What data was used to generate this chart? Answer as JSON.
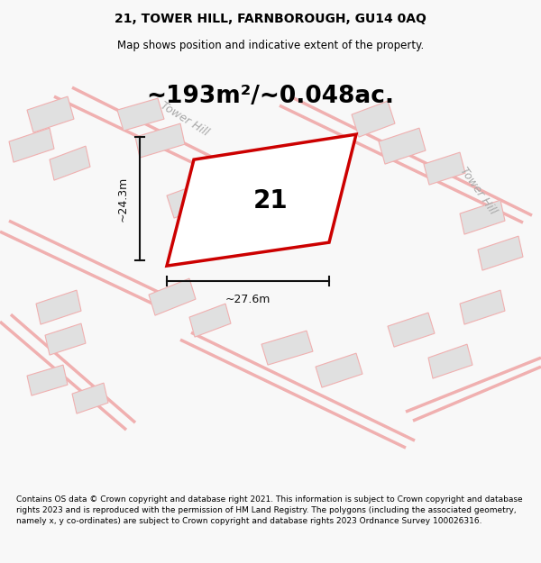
{
  "title": "21, TOWER HILL, FARNBOROUGH, GU14 0AQ",
  "subtitle": "Map shows position and indicative extent of the property.",
  "area_text": "~193m²/~0.048ac.",
  "number_label": "21",
  "dim_vertical": "~24.3m",
  "dim_horizontal": "~27.6m",
  "road_label_1": "Tower Hill",
  "road_label_2": "Tower Hill",
  "footer": "Contains OS data © Crown copyright and database right 2021. This information is subject to Crown copyright and database rights 2023 and is reproduced with the permission of HM Land Registry. The polygons (including the associated geometry, namely x, y co-ordinates) are subject to Crown copyright and database rights 2023 Ordnance Survey 100026316.",
  "bg_color": "#f8f8f8",
  "map_bg": "#ffffff",
  "plot_color_fill": "#ffffff",
  "plot_color_edge": "#cc0000",
  "other_plots_fill": "#e0e0e0",
  "other_plots_edge": "#f0b0b0",
  "road_line_color": "#f0b0b0",
  "dim_line_color": "#111111",
  "title_fontsize": 10,
  "subtitle_fontsize": 8.5,
  "area_fontsize": 19,
  "footer_fontsize": 6.5,
  "road_label_color": "#aaaaaa",
  "road_label_fontsize": 9
}
